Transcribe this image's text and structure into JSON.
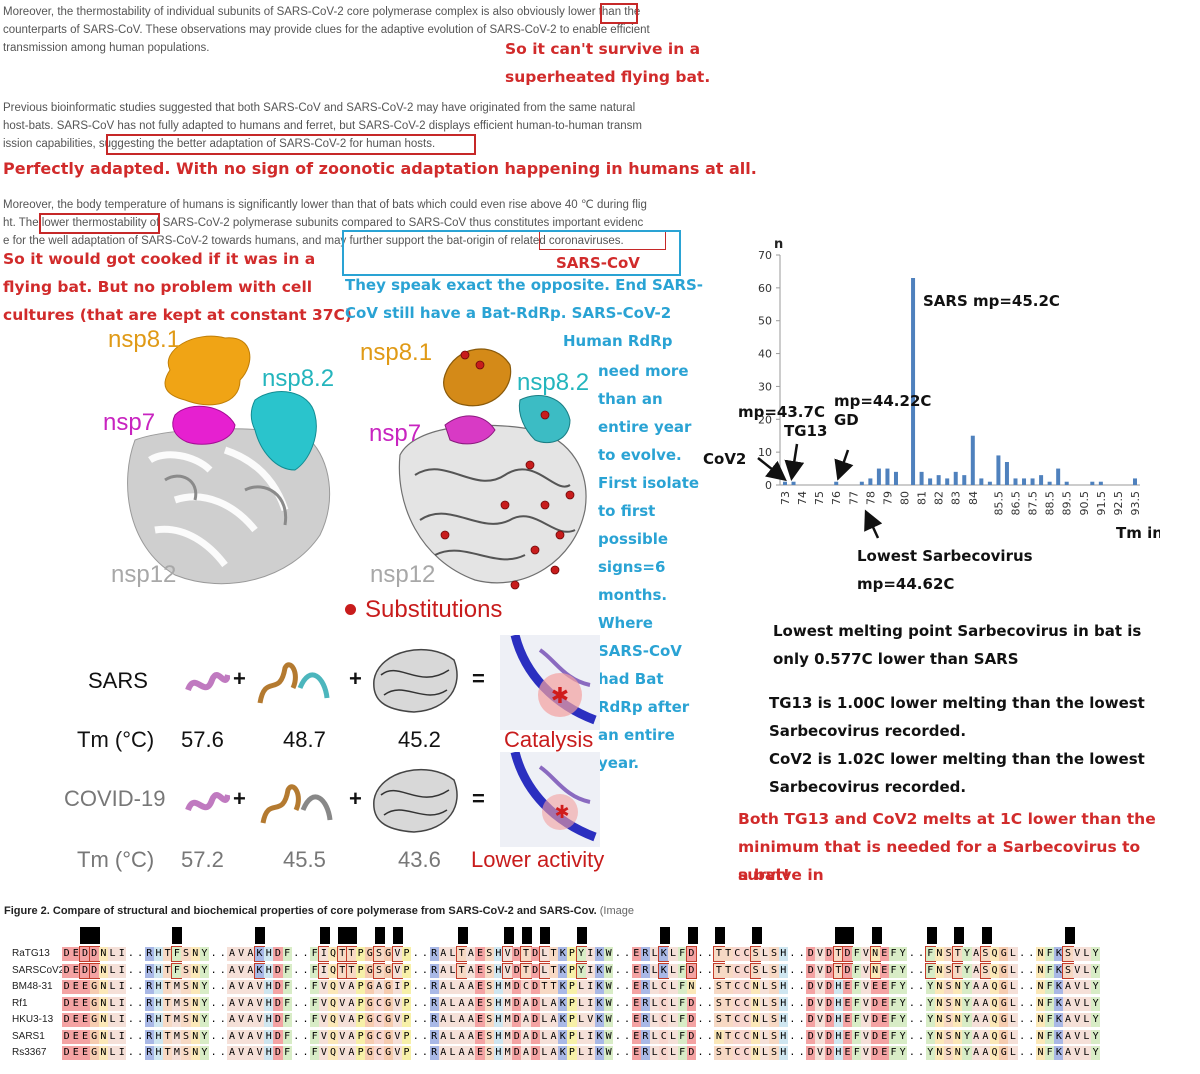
{
  "paragraphs": {
    "p1_line1": "Moreover, the thermostability of individual subunits of SARS-CoV-2 core polymerase complex is also obviously lower than the",
    "p1_line2": "counterparts of SARS-CoV. These observations may provide clues for the adaptive evolution of SARS-CoV-2 to enable efficient",
    "p1_line3": "transmission among human populations.",
    "p2_line1": " Previous bioinformatic studies suggested that both SARS-CoV and SARS-CoV-2 may have originated from the same natural",
    "p2_line2": "host-bats. SARS-CoV has not fully adapted to humans and ferret, but SARS-CoV-2 displays efficient human-to-human transm",
    "p2_line3": "ission capabilities, suggesting the better adaptation of SARS-CoV-2 for human hosts.",
    "p3_line1": "Moreover, the body temperature of humans is significantly lower than that of bats which could even rise above 40 ℃ during flig",
    "p3_line2": "ht. The lower thermostability of SARS-CoV-2 polymerase subunits compared to SARS-CoV thus constitutes important evidenc",
    "p3_line3": "e for the well adaptation of SARS-CoV-2 towards humans, and may further support the bat-origin of related coronaviruses."
  },
  "annotations": {
    "red1_a": "So it can't survive in a",
    "red1_b": "superheated flying bat.",
    "red2": "Perfectly adapted. With no sign of zoonotic adaptation happening in humans at all.",
    "red3_a": "So it would got cooked if it was in a",
    "red3_b": "flying bat. But no problem with cell",
    "red3_c": "cultures (that are kept at constant 37C)",
    "sarscov": "SARS-CoV",
    "blue_lines": [
      "They speak exact the opposite. End SARS-",
      "CoV still have a Bat-RdRp.  SARS-CoV-2",
      "Human RdRp",
      "need more",
      "than an",
      "entire year",
      "to evolve.",
      "First isolate",
      "to first",
      "possible",
      "signs=6",
      "months.",
      "Where",
      "SARS-CoV",
      "had Bat",
      "RdRp after",
      "an entire",
      "year."
    ],
    "black1_a": "Lowest melting point Sarbecovirus in bat is",
    "black1_b": "only 0.577C lower than SARS",
    "black2_a": "TG13 is 1.00C lower melting than the lowest",
    "black2_b": "Sarbecovirus recorded.",
    "black2_c": "CoV2 is 1.02C lower melting than the lowest",
    "black2_d": "Sarbecovirus recorded.",
    "red4_a": "Both TG13 and CoV2 melts at 1C lower than the",
    "red4_b": "minimum that is needed for a Sarbecovirus to survive in",
    "red4_c": "a bat!"
  },
  "structure_figure": {
    "nsp81": "nsp8.1",
    "nsp82": "nsp8.2",
    "nsp7": "nsp7",
    "nsp12": "nsp12",
    "substitutions": "Substitutions",
    "row_sars": "SARS",
    "row_tm": "Tm (°C)",
    "sars_tm": [
      "57.6",
      "48.7",
      "45.2"
    ],
    "catalysis": "Catalysis",
    "row_covid": "COVID-19",
    "covid_tm": [
      "57.2",
      "45.5",
      "43.6"
    ],
    "lower_activity": "Lower activity",
    "plus": "+",
    "equals": "="
  },
  "chart_labels": {
    "sars_mp": "SARS mp=45.2C",
    "mp437": "mp=43.7C",
    "tg13": "TG13",
    "mp4422": "mp=44.22C",
    "gd": "GD",
    "cov2": "CoV2",
    "lowest_a": "Lowest Sarbecovirus",
    "lowest_b": "mp=44.62C"
  },
  "chart_data": {
    "type": "bar",
    "ylabel": "n",
    "xlabel": "Tm index",
    "ylim": [
      0,
      70
    ],
    "yticks": [
      0,
      10,
      20,
      30,
      40,
      50,
      60,
      70
    ],
    "xtick_labels": [
      "73",
      "74",
      "75",
      "76",
      "77",
      "78",
      "79",
      "80",
      "81",
      "82",
      "83",
      "84",
      "85.5",
      "86.5",
      "87.5",
      "88.5",
      "89.5",
      "90.5",
      "91.5",
      "92.5",
      "93.5"
    ],
    "x": [
      73,
      73.5,
      74,
      74.5,
      75,
      75.5,
      76,
      76.5,
      77,
      77.5,
      78,
      78.5,
      79,
      79.5,
      80,
      80.5,
      81,
      81.5,
      82,
      82.5,
      83,
      83.5,
      84,
      84.5,
      85,
      85.5,
      86,
      86.5,
      87,
      87.5,
      88,
      88.5,
      89,
      89.5,
      90,
      90.5,
      91,
      91.5,
      92,
      92.5,
      93,
      93.5
    ],
    "values": [
      1,
      1,
      0,
      0,
      0,
      0,
      1,
      0,
      0,
      1,
      2,
      5,
      5,
      4,
      0,
      63,
      4,
      2,
      3,
      2,
      4,
      3,
      15,
      2,
      1,
      9,
      7,
      2,
      2,
      2,
      3,
      1,
      5,
      1,
      0,
      0,
      1,
      1,
      0,
      0,
      0,
      2
    ],
    "color": "#4f81bd"
  },
  "caption": {
    "bold": "Figure 2. Compare of structural and biochemical properties of core polymerase from SARS-CoV-2 and SARS-Cov.",
    "rest": " (Image"
  },
  "alignment": {
    "names": [
      "RaTG13",
      "SARSCoV2",
      "BM48-31",
      "Rf1",
      "HKU3-13",
      "SARS1",
      "Rs3367"
    ],
    "rows": [
      "DEDDNLI..RHTFSNY..AVAKHDF..FIQTTPGSGVP..RALTAESHVDTDLTKPYIKW..ERLKLFD..TTCCSLSH..DVDTDFVNEFY..FNSTYASQGL..NFKSVLY",
      "DEDDNLI..RHTFSNY..AVAKHDF..FIQTTPGSGVP..RALTAESHVDTDLTKPYIKW..ERLKLFD..TTCCSLSH..DVDTDFVNEFY..FNSTYASQGL..NFKSVLY",
      "DEEGNLI..RHTMSNY..AVAVHDF..FVQVAPGAGIP..RALAAESHMDCDTTKPLIKW..ERLCLFN..STCCNLSH..DVDHEFVEEFY..YNSNYAAQGL..NFKAVLY",
      "DEEGNLI..RHTMSNY..AVAVHDF..FVQVAPGCGVP..RALAAESHMDADLAKPLIKW..ERLCLFD..STCCNLSH..DVDHEFVDEFY..YNSNYAAQGL..NFKAVLY",
      "DEEGNLI..RHTMSNY..AVAVHDF..FVQVAPGCGVP..RALAAESHMDADLAKPLVKW..ERLCLFD..STCCNLSH..DVDHEFVDEFY..YNSNYAAQGL..NFKAVLY",
      "DEEGNLI..RHTMSNY..AVAVHDF..FVQVAPGCGVP..RALAAESHMDADLAKPLIKW..ERLCLFD..NTCCNLSH..DVDHEFVDEFY..YNSNYAAQGL..NFKAVLY",
      "DEEGNLI..RHTMSNY..AVAVHDF..FVQVAPGCGVP..RALAAESHMDADLAKPLIKW..ERLCLFD..STCCNLSH..DVDHEFVDEFY..YNSNYAAQGL..NFKAVLY"
    ]
  }
}
